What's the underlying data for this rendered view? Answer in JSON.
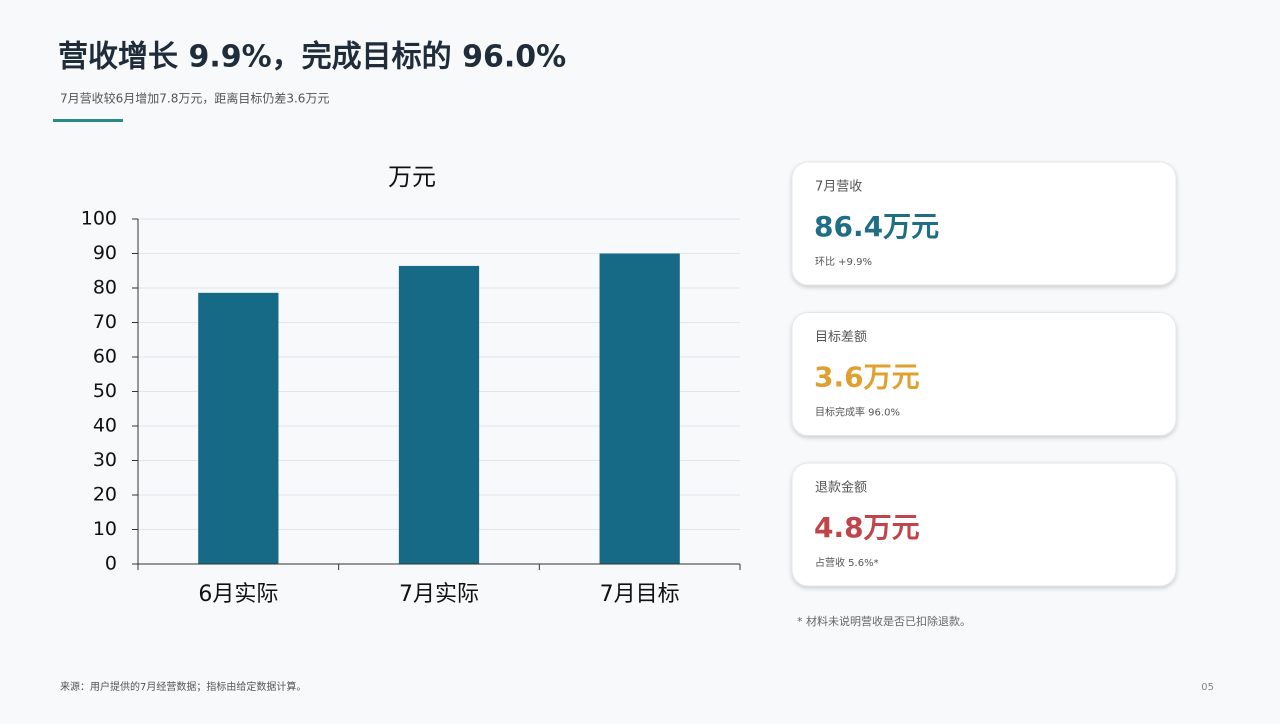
{
  "header": {
    "title": "营收增长 9.9%，完成目标的 96.0%",
    "subtitle": "7月营收较6月增加7.8万元，距离目标仍差3.6万元"
  },
  "chart_data": {
    "type": "bar",
    "title": "万元",
    "categories": [
      "6月实际",
      "7月实际",
      "7月目标"
    ],
    "values": [
      78.6,
      86.4,
      90.0
    ],
    "color": "#176a86",
    "ylim": [
      0,
      100
    ],
    "yticks": [
      0,
      10,
      20,
      30,
      40,
      50,
      60,
      70,
      80,
      90,
      100
    ],
    "grid": true
  },
  "cards": [
    {
      "label": "7月营收",
      "value": "86.4万元",
      "note": "环比 +9.9%",
      "color": "#1f6e85"
    },
    {
      "label": "目标差额",
      "value": "3.6万元",
      "note": "目标完成率 96.0%",
      "color": "#e0a030"
    },
    {
      "label": "退款金额",
      "value": "4.8万元",
      "note": "占营收 5.6%*",
      "color": "#c0454a"
    }
  ],
  "footnote": "* 材料未说明营收是否已扣除退款。",
  "source": "来源：用户提供的7月经营数据；指标由给定数据计算。",
  "page_number": "05"
}
